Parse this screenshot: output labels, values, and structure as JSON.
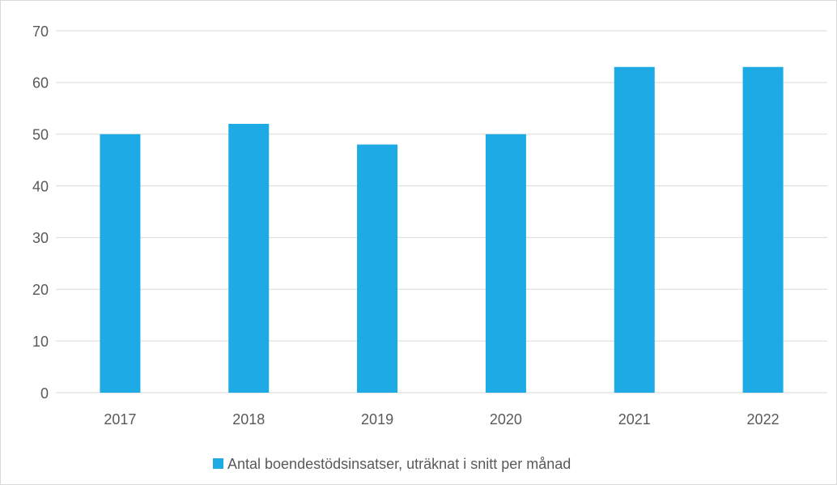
{
  "chart_data": {
    "type": "bar",
    "categories": [
      "2017",
      "2018",
      "2019",
      "2020",
      "2021",
      "2022"
    ],
    "series": [
      {
        "name": "Antal boendestödsinsatser, uträknat i snitt per månad",
        "color": "#1eaae4",
        "values": [
          50,
          52,
          48,
          50,
          63,
          63
        ]
      }
    ],
    "ylim": [
      0,
      70
    ],
    "yticks": [
      0,
      10,
      20,
      30,
      40,
      50,
      60,
      70
    ],
    "grid": true,
    "legend": "bottom"
  }
}
